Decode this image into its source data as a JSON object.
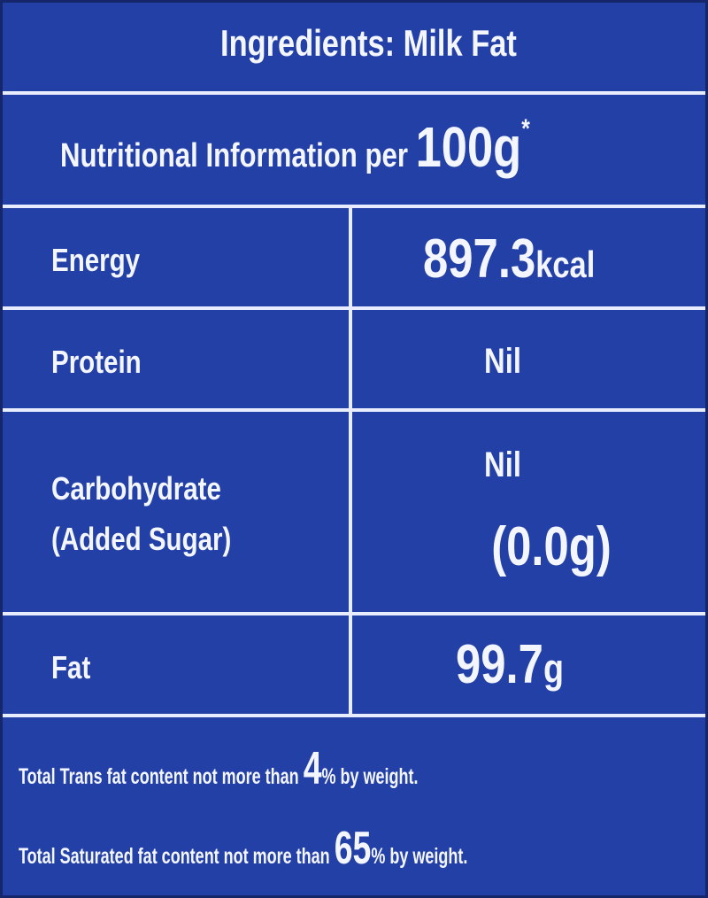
{
  "header": {
    "ingredients": "Ingredients: Milk Fat",
    "nutrition_title": "Nutritional Information per",
    "serving": "100g",
    "serving_note": "*"
  },
  "table": {
    "rows": [
      {
        "nutrient": "Energy",
        "amount": "897.3",
        "unit": "kcal"
      },
      {
        "nutrient": "Protein",
        "amount": "Nil"
      },
      {
        "nutrient": "Carbohydrate",
        "sub_label": "(Added Sugar)",
        "amount": "Nil",
        "sub_amount": "(0.0",
        "sub_unit": "g)"
      },
      {
        "nutrient": "Fat",
        "amount": "99.7",
        "unit": "g"
      }
    ]
  },
  "footer": {
    "notes": [
      {
        "text": "Total Trans fat content not more than",
        "number": "4",
        "suffix": "% by weight."
      },
      {
        "text": "Total Saturated fat content not more than",
        "number": "65",
        "suffix": "% by weight."
      }
    ]
  }
}
